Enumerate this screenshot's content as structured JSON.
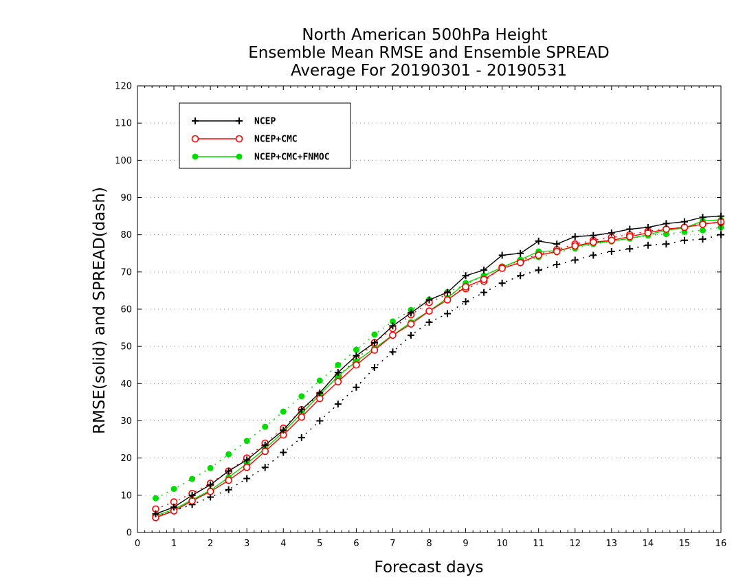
{
  "chart_data": {
    "type": "line",
    "title": [
      "North American 500hPa Height",
      "Ensemble Mean RMSE and Ensemble SPREAD",
      "Average For 20190301 - 20190531"
    ],
    "xlabel": "Forecast days",
    "ylabel": "RMSE(solid) and SPREAD(dash)",
    "xlim": [
      0,
      16
    ],
    "ylim": [
      0,
      120
    ],
    "xticks": [
      0,
      1,
      2,
      3,
      4,
      5,
      6,
      7,
      8,
      9,
      10,
      11,
      12,
      13,
      14,
      15,
      16
    ],
    "yticks": [
      0,
      10,
      20,
      30,
      40,
      50,
      60,
      70,
      80,
      90,
      100,
      110,
      120
    ],
    "grid": "horizontal-dotted",
    "legend_position": "top-left",
    "x": [
      0.5,
      1,
      1.5,
      2,
      2.5,
      3,
      3.5,
      4,
      4.5,
      5,
      5.5,
      6,
      6.5,
      7,
      7.5,
      8,
      8.5,
      9,
      9.5,
      10,
      10.5,
      11,
      11.5,
      12,
      12.5,
      13,
      13.5,
      14,
      14.5,
      15,
      15.5,
      16
    ],
    "series": [
      {
        "name": "NCEP",
        "color": "#000000",
        "marker": "plus",
        "rmse": [
          5,
          6.8,
          10,
          12.8,
          16.5,
          19.5,
          23.5,
          27.5,
          33,
          37.5,
          43,
          47.5,
          51,
          55.5,
          59,
          62.5,
          64.5,
          69,
          70.5,
          74.5,
          75,
          78.3,
          77.5,
          79.5,
          79.8,
          80.5,
          81.5,
          82,
          83,
          83.5,
          84.7,
          85
        ],
        "spread": [
          4.5,
          5.8,
          7.5,
          9.5,
          11.5,
          14.5,
          17.5,
          21.5,
          25.5,
          30,
          34.5,
          39,
          44.3,
          48.5,
          53,
          56.5,
          58.8,
          62,
          64.5,
          67,
          69,
          70.5,
          72,
          73.2,
          74.5,
          75.5,
          76.2,
          77.2,
          77.5,
          78.5,
          78.8,
          80
        ]
      },
      {
        "name": "NCEP+CMC",
        "color": "#ff0000",
        "marker": "circle-open",
        "rmse": [
          4,
          5.8,
          8.5,
          11,
          14,
          17.5,
          21.8,
          26.2,
          31,
          36,
          40.5,
          45,
          49,
          53,
          56,
          59.5,
          62.5,
          66,
          68,
          71,
          72.5,
          74.5,
          75.5,
          77,
          78,
          78.5,
          79.5,
          80.5,
          81.5,
          82,
          82.8,
          83.5
        ],
        "spread": [
          6.3,
          8.2,
          10.5,
          13.2,
          16.5,
          20,
          24,
          28,
          33,
          37,
          42,
          46.5,
          51,
          54.8,
          58.5,
          61.8,
          64,
          65.5,
          67.5,
          71.3,
          73,
          74.8,
          76,
          77.5,
          78.5,
          79.3,
          80,
          81,
          81.5,
          82,
          83,
          83.3
        ]
      },
      {
        "name": "NCEP+CMC+FNMOC",
        "color": "#00dd00",
        "marker": "circle-filled",
        "rmse": [
          4.5,
          6.2,
          8.8,
          11.3,
          14.8,
          18.5,
          22.5,
          27,
          32,
          37,
          42,
          46,
          49.5,
          53,
          56.5,
          59.5,
          63,
          67,
          69,
          71.3,
          73.3,
          75.5,
          75.7,
          76.8,
          77.7,
          78.3,
          79,
          80,
          81.2,
          81.8,
          83.7,
          84
        ],
        "spread": [
          9.2,
          11.7,
          14.4,
          17.3,
          21,
          24.6,
          28.4,
          32.5,
          36.6,
          40.8,
          45,
          49.1,
          53.2,
          56.7,
          59.8,
          62.6,
          64.6,
          66.6,
          69,
          71,
          72.5,
          74,
          75.3,
          76.3,
          77.5,
          78.2,
          79,
          79.8,
          80.2,
          80.8,
          81.2,
          82
        ]
      }
    ]
  }
}
